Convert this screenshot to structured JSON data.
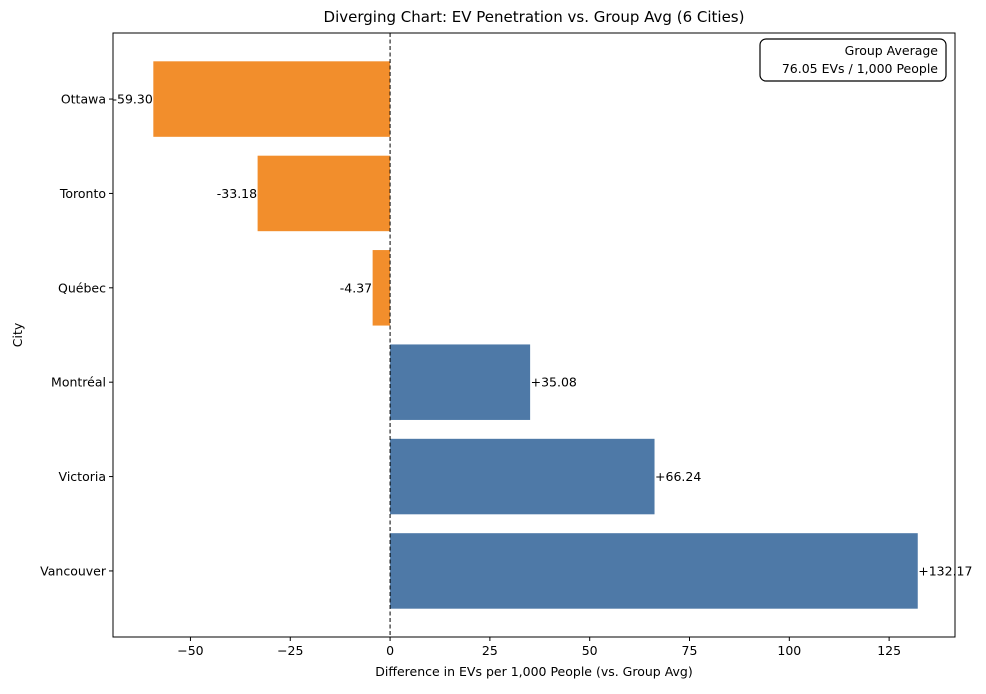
{
  "chart_data": {
    "type": "bar",
    "orientation": "horizontal",
    "title": "Diverging Chart: EV Penetration vs. Group Avg (6 Cities)",
    "xlabel": "Difference in EVs per 1,000 People (vs. Group Avg)",
    "ylabel": "City",
    "xlim": [
      -69.4,
      141.5
    ],
    "xticks": [
      -50,
      -25,
      0,
      25,
      50,
      75,
      100,
      125
    ],
    "xtick_labels": [
      "−50",
      "−25",
      "0",
      "25",
      "50",
      "75",
      "100",
      "125"
    ],
    "categories": [
      "Ottawa",
      "Toronto",
      "Québec",
      "Montréal",
      "Victoria",
      "Vancouver"
    ],
    "values": [
      -59.3,
      -33.18,
      -4.37,
      35.08,
      66.24,
      132.17
    ],
    "value_labels": [
      "-59.30",
      "-33.18",
      "-4.37",
      "+35.08",
      "+66.24",
      "+132.17"
    ],
    "colors": {
      "negative": "#f28e2c",
      "positive": "#4e79a7"
    },
    "reference_line": {
      "x": 0,
      "style": "dashed"
    },
    "grid": false,
    "annotation": {
      "position": "top-right",
      "line1": "Group Average",
      "line2": "76.05 EVs / 1,000 People"
    }
  }
}
